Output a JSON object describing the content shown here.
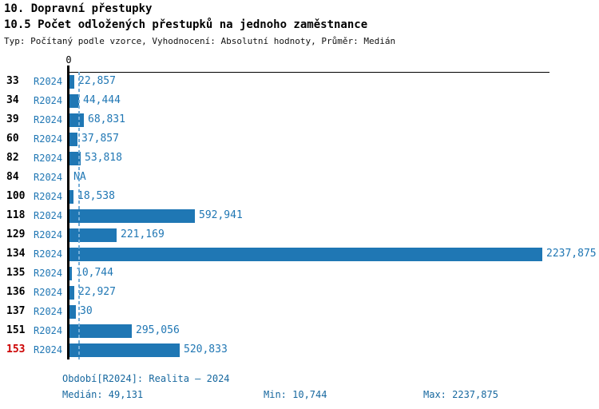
{
  "header": {
    "title": "10. Dopravní přestupky",
    "subtitle": "10.5 Počet odložených přestupků na jednoho zaměstnance",
    "meta": "Typ: Počítaný podle vzorce, Vyhodnocení: Absolutní hodnoty, Průměr: Medián"
  },
  "chart_data": {
    "type": "bar",
    "orientation": "horizontal",
    "title": "10.5 Počet odložených přestupků na jednoho zaměstnance",
    "axis_zero_label": "0",
    "categories": [
      "33",
      "34",
      "39",
      "60",
      "82",
      "84",
      "100",
      "118",
      "129",
      "134",
      "135",
      "136",
      "137",
      "151",
      "153"
    ],
    "series": [
      {
        "name": "R2024",
        "values": [
          22.857,
          44.444,
          68.831,
          37.857,
          53.818,
          null,
          18.538,
          592.941,
          221.169,
          2237.875,
          10.744,
          22.927,
          30,
          295.056,
          520.833
        ]
      }
    ],
    "value_labels": [
      "22,857",
      "44,444",
      "68,831",
      "37,857",
      "53,818",
      "NA",
      "18,538",
      "592,941",
      "221,169",
      "2237,875",
      "10,744",
      "22,927",
      "30",
      "295,056",
      "520,833"
    ],
    "highlighted_category": "153",
    "median": 49.131,
    "xlim": [
      0,
      2237.875
    ],
    "legend_position": "none",
    "grid": false
  },
  "footer": {
    "period": "Období[R2024]: Realita – 2024",
    "median": "Medián: 49,131",
    "min": "Min: 10,744",
    "max": "Max: 2237,875"
  },
  "colors": {
    "bar": "#1f77b4",
    "blue_text": "#2077b4",
    "footer_text": "#17689f",
    "highlight_red": "#cc0000",
    "median_line": "#74add8",
    "axis": "#000000"
  }
}
